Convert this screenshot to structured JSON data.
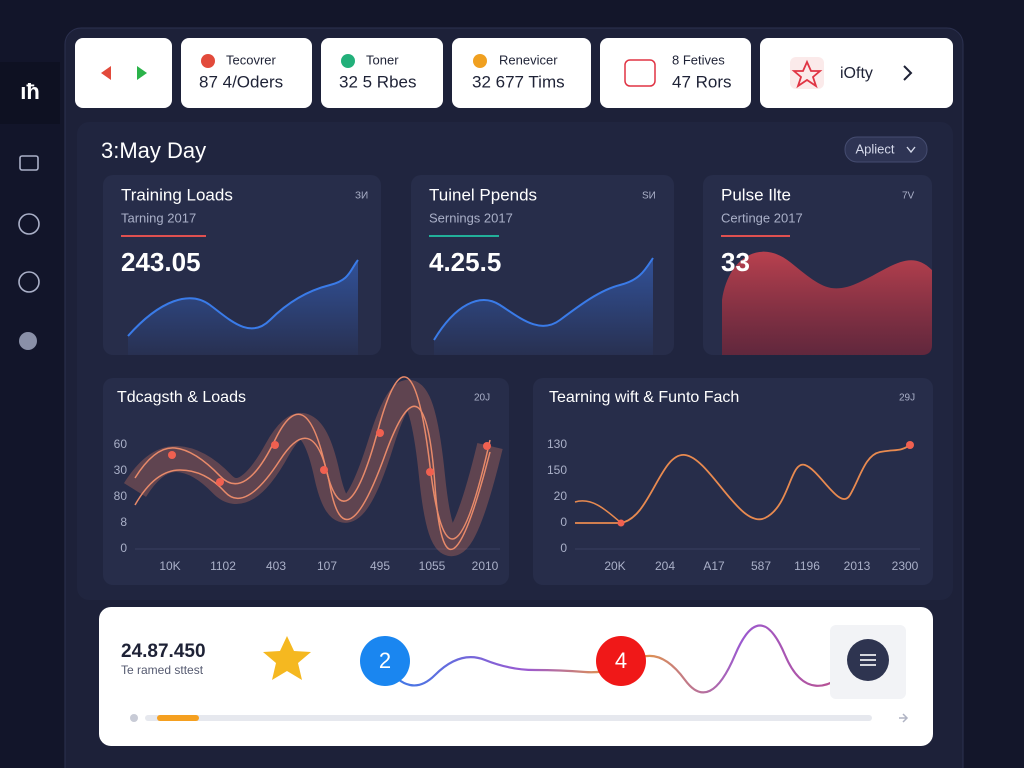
{
  "sidebar": {
    "logo": "ıħ"
  },
  "top_cards": [
    {
      "label": "Tecovrer",
      "value": "87 4/Oders"
    },
    {
      "label": "Toner",
      "value": "32 5 Rbes"
    },
    {
      "label": "Renevicer",
      "value": "32 677 Tims"
    },
    {
      "label": "8 Fetives",
      "value": "47 Rors"
    },
    {
      "label": "iOfty"
    }
  ],
  "section": {
    "title": "3:May Day",
    "button": "Apliect"
  },
  "stat_cards": [
    {
      "title": "Training Loads",
      "subtitle": "Tarning 2017",
      "value": "243.05",
      "corner": "ЗИ"
    },
    {
      "title": "Tuinel Ppends",
      "subtitle": "Sernings 2017",
      "value": "4.25.5",
      "corner": "SИ"
    },
    {
      "title": "Pulse Ilte",
      "subtitle": "Certinge 2017",
      "value": "33",
      "corner": "7V"
    }
  ],
  "charts": [
    {
      "title": "Tdcagsth & Loads",
      "corner": "20J",
      "y_labels": [
        "60",
        "30",
        "80",
        "8",
        "0"
      ],
      "x_labels": [
        "10K",
        "1102",
        "403",
        "107",
        "495",
        "1055",
        "2010"
      ]
    },
    {
      "title": "Tearning wift & Funto Fach",
      "corner": "29J",
      "y_labels": [
        "130",
        "150",
        "20",
        "0",
        "0"
      ],
      "x_labels": [
        "20K",
        "204",
        "A17",
        "587",
        "1196",
        "2013",
        "2300"
      ]
    }
  ],
  "footer_card": {
    "value": "24.87.450",
    "caption": "Te ramed sttest",
    "badge_1": "2",
    "badge_2": "4"
  }
}
